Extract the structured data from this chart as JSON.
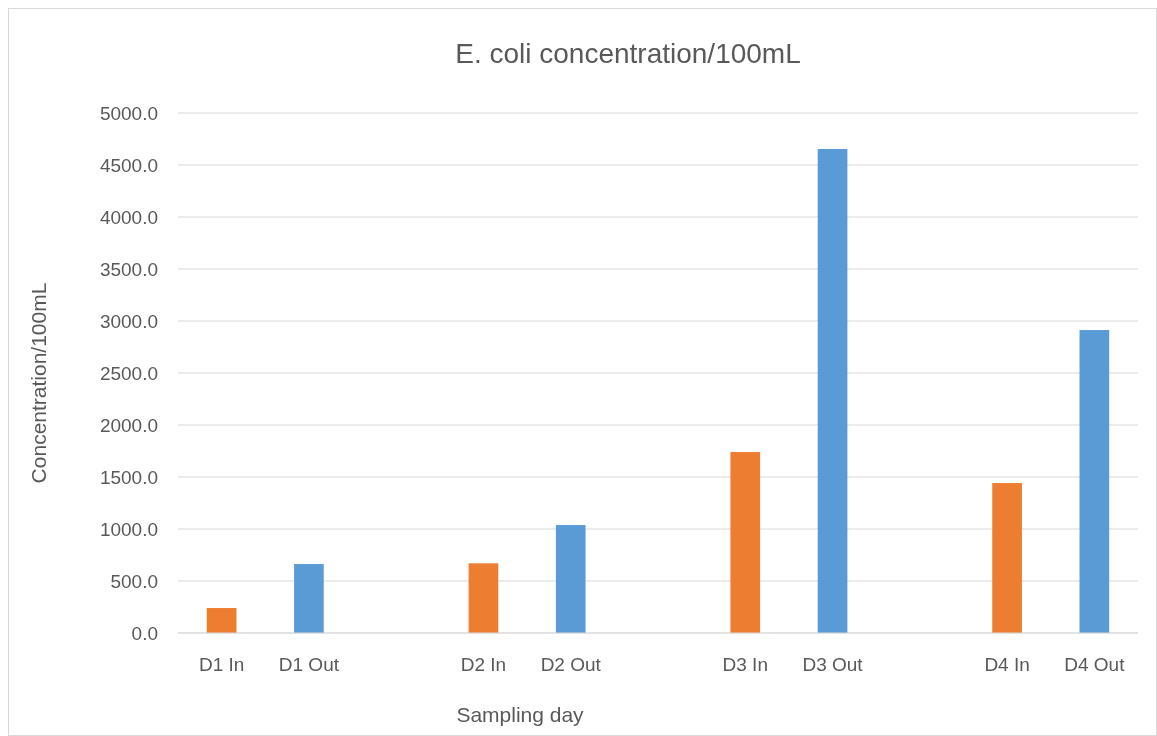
{
  "chart_data": {
    "type": "bar",
    "title": "E. coli concentration/100mL",
    "xlabel": "Sampling day",
    "ylabel": "Concentration/100mL",
    "categories": [
      "D1 In",
      "D1 Out",
      null,
      "D2 In",
      "D2 Out",
      null,
      "D3 In",
      "D3 Out",
      null,
      "D4 In",
      "D4 Out"
    ],
    "values": [
      240,
      663,
      null,
      670,
      1038,
      null,
      1740,
      4654,
      null,
      1442,
      2913
    ],
    "colors": [
      "#ed7d31",
      "#5b9bd5",
      null,
      "#ed7d31",
      "#5b9bd5",
      null,
      "#ed7d31",
      "#5b9bd5",
      null,
      "#ed7d31",
      "#5b9bd5"
    ],
    "ylim": [
      0,
      5000
    ],
    "yticks": [
      {
        "value": 0,
        "label": "0.0"
      },
      {
        "value": 500,
        "label": "500.0"
      },
      {
        "value": 1000,
        "label": "1000.0"
      },
      {
        "value": 1500,
        "label": "1500.0"
      },
      {
        "value": 2000,
        "label": "2000.0"
      },
      {
        "value": 2500,
        "label": "2500.0"
      },
      {
        "value": 3000,
        "label": "3000.0"
      },
      {
        "value": 3500,
        "label": "3500.0"
      },
      {
        "value": 4000,
        "label": "4000.0"
      },
      {
        "value": 4500,
        "label": "4500.0"
      },
      {
        "value": 5000,
        "label": "5000.0"
      }
    ],
    "grid": "y"
  }
}
